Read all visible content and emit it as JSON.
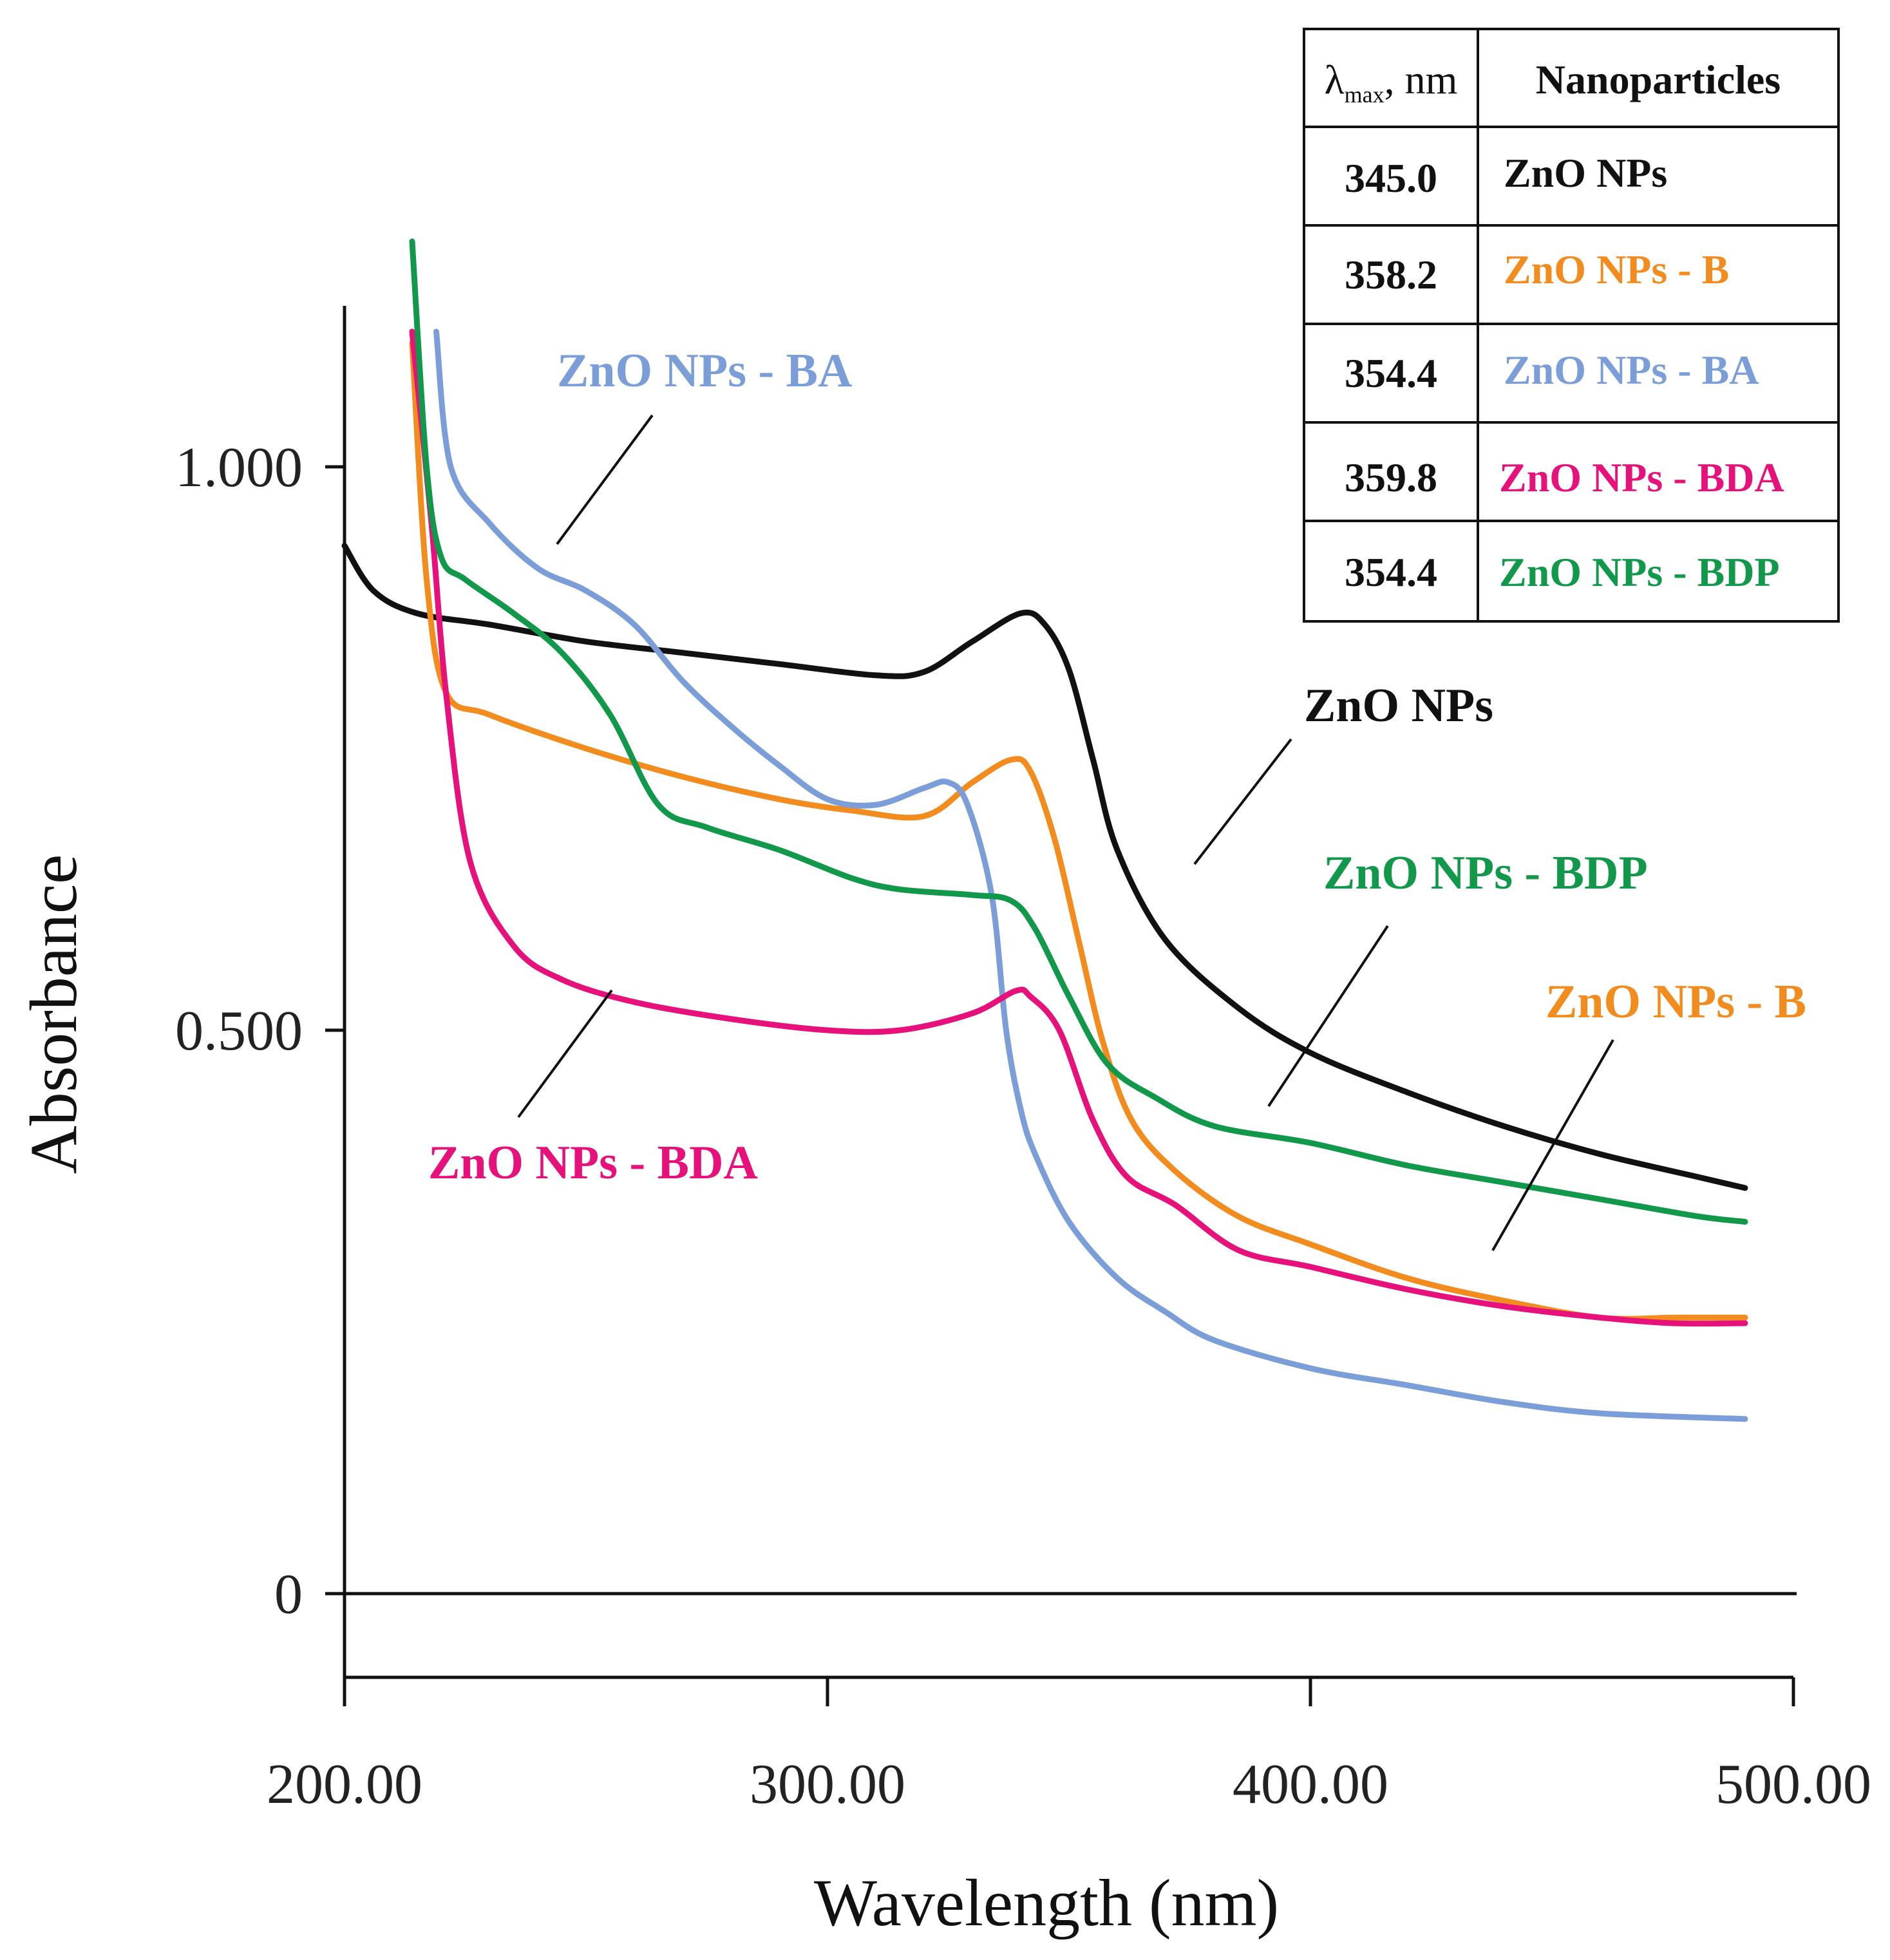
{
  "chart_data": {
    "type": "line",
    "title": "",
    "xlabel": "Wavelength (nm)",
    "ylabel": "Absorbance",
    "xlim": [
      200,
      500
    ],
    "ylim": [
      -0.075,
      1.15
    ],
    "x_ticks": [
      "200.00",
      "300.00",
      "400.00",
      "500.00"
    ],
    "x_tick_values": [
      200,
      300,
      400,
      500
    ],
    "y_ticks": [
      "0",
      "0.500",
      "1.000"
    ],
    "y_tick_values": [
      0,
      0.5,
      1.0
    ],
    "series": [
      {
        "name": "ZnO NPs",
        "color": "#111111",
        "points": [
          [
            200,
            0.93
          ],
          [
            206,
            0.89
          ],
          [
            215,
            0.87
          ],
          [
            230,
            0.86
          ],
          [
            250,
            0.845
          ],
          [
            270,
            0.835
          ],
          [
            290,
            0.825
          ],
          [
            310,
            0.815
          ],
          [
            320,
            0.818
          ],
          [
            330,
            0.845
          ],
          [
            340,
            0.87
          ],
          [
            345,
            0.86
          ],
          [
            350,
            0.82
          ],
          [
            355,
            0.74
          ],
          [
            360,
            0.66
          ],
          [
            370,
            0.58
          ],
          [
            385,
            0.52
          ],
          [
            400,
            0.48
          ],
          [
            420,
            0.445
          ],
          [
            440,
            0.415
          ],
          [
            460,
            0.39
          ],
          [
            480,
            0.37
          ],
          [
            490,
            0.36
          ]
        ]
      },
      {
        "name": "ZnO NPs - B",
        "color": "#f28c1e",
        "points": [
          [
            214,
            1.11
          ],
          [
            217,
            0.9
          ],
          [
            221,
            0.8
          ],
          [
            230,
            0.78
          ],
          [
            250,
            0.75
          ],
          [
            270,
            0.725
          ],
          [
            290,
            0.705
          ],
          [
            305,
            0.695
          ],
          [
            320,
            0.69
          ],
          [
            330,
            0.72
          ],
          [
            338,
            0.74
          ],
          [
            342,
            0.73
          ],
          [
            347,
            0.67
          ],
          [
            352,
            0.58
          ],
          [
            357,
            0.49
          ],
          [
            363,
            0.42
          ],
          [
            372,
            0.375
          ],
          [
            385,
            0.335
          ],
          [
            400,
            0.31
          ],
          [
            420,
            0.28
          ],
          [
            440,
            0.26
          ],
          [
            460,
            0.245
          ],
          [
            476,
            0.245
          ],
          [
            490,
            0.245
          ]
        ]
      },
      {
        "name": "ZnO NPs - BA",
        "color": "#7b9ed8",
        "points": [
          [
            219,
            1.12
          ],
          [
            222,
            1.0
          ],
          [
            230,
            0.95
          ],
          [
            240,
            0.91
          ],
          [
            250,
            0.89
          ],
          [
            260,
            0.86
          ],
          [
            270,
            0.81
          ],
          [
            280,
            0.77
          ],
          [
            290,
            0.735
          ],
          [
            300,
            0.705
          ],
          [
            310,
            0.7
          ],
          [
            320,
            0.715
          ],
          [
            325,
            0.72
          ],
          [
            329,
            0.7
          ],
          [
            334,
            0.62
          ],
          [
            337,
            0.5
          ],
          [
            340,
            0.43
          ],
          [
            343,
            0.39
          ],
          [
            350,
            0.33
          ],
          [
            360,
            0.28
          ],
          [
            370,
            0.25
          ],
          [
            380,
            0.225
          ],
          [
            400,
            0.2
          ],
          [
            420,
            0.185
          ],
          [
            440,
            0.17
          ],
          [
            460,
            0.16
          ],
          [
            490,
            0.155
          ]
        ]
      },
      {
        "name": "ZnO NPs - BDA",
        "color": "#e6117b",
        "points": [
          [
            214,
            1.12
          ],
          [
            218,
            0.95
          ],
          [
            221,
            0.8
          ],
          [
            226,
            0.65
          ],
          [
            235,
            0.575
          ],
          [
            245,
            0.545
          ],
          [
            260,
            0.525
          ],
          [
            280,
            0.51
          ],
          [
            300,
            0.5
          ],
          [
            315,
            0.5
          ],
          [
            330,
            0.515
          ],
          [
            339,
            0.535
          ],
          [
            342,
            0.53
          ],
          [
            348,
            0.5
          ],
          [
            355,
            0.42
          ],
          [
            362,
            0.37
          ],
          [
            372,
            0.345
          ],
          [
            385,
            0.305
          ],
          [
            400,
            0.29
          ],
          [
            420,
            0.27
          ],
          [
            440,
            0.255
          ],
          [
            460,
            0.245
          ],
          [
            475,
            0.24
          ],
          [
            490,
            0.24
          ]
        ]
      },
      {
        "name": "ZnO NPs - BDP",
        "color": "#12984a",
        "points": [
          [
            214,
            1.2
          ],
          [
            217,
            1.0
          ],
          [
            220,
            0.92
          ],
          [
            225,
            0.9
          ],
          [
            235,
            0.87
          ],
          [
            245,
            0.835
          ],
          [
            255,
            0.78
          ],
          [
            265,
            0.7
          ],
          [
            275,
            0.68
          ],
          [
            290,
            0.66
          ],
          [
            305,
            0.635
          ],
          [
            315,
            0.625
          ],
          [
            330,
            0.62
          ],
          [
            338,
            0.615
          ],
          [
            343,
            0.59
          ],
          [
            350,
            0.53
          ],
          [
            358,
            0.47
          ],
          [
            368,
            0.44
          ],
          [
            380,
            0.415
          ],
          [
            400,
            0.4
          ],
          [
            420,
            0.38
          ],
          [
            440,
            0.365
          ],
          [
            460,
            0.35
          ],
          [
            480,
            0.335
          ],
          [
            490,
            0.33
          ]
        ]
      }
    ],
    "curve_labels": [
      {
        "series": "ZnO NPs - BA",
        "text": "ZnO NPs - BA"
      },
      {
        "series": "ZnO NPs",
        "text": "ZnO NPs"
      },
      {
        "series": "ZnO NPs - BDP",
        "text": "ZnO NPs - BDP"
      },
      {
        "series": "ZnO NPs - B",
        "text": "ZnO NPs - B"
      },
      {
        "series": "ZnO NPs - BDA",
        "text": "ZnO NPs - BDA"
      }
    ],
    "table": {
      "headers": [
        "λmax, nm",
        "Nanoparticles"
      ],
      "header_lambda_main": "λ",
      "header_lambda_sub": "max",
      "header_lambda_unit": ", nm",
      "rows": [
        {
          "lambda": "345.0",
          "name": "ZnO NPs",
          "color": "#111111"
        },
        {
          "lambda": "358.2",
          "name": "ZnO NPs - B",
          "color": "#f28c1e"
        },
        {
          "lambda": "354.4",
          "name": "ZnO NPs - BA",
          "color": "#7b9ed8"
        },
        {
          "lambda": "359.8",
          "name": "ZnO NPs - BDA",
          "color": "#e6117b"
        },
        {
          "lambda": "354.4",
          "name": "ZnO NPs - BDP",
          "color": "#12984a"
        }
      ]
    }
  }
}
